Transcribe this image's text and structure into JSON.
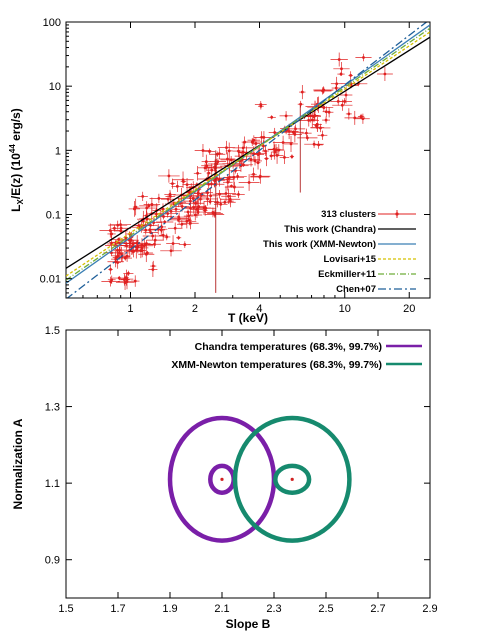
{
  "chart_data": [
    {
      "type": "scatter",
      "xlabel": "T (keV)",
      "ylabel_main": "L",
      "ylabel_sub": "X",
      "ylabel_rest": "/E(z) (10",
      "ylabel_sup": "44",
      "ylabel_end": " erg/s)",
      "xscale": "log",
      "yscale": "log",
      "xlim": [
        0.5,
        25
      ],
      "ylim": [
        0.005,
        100
      ],
      "x_ticks": [
        {
          "value": 1,
          "label": "1"
        },
        {
          "value": 2,
          "label": "2"
        },
        {
          "value": 4,
          "label": "4"
        },
        {
          "value": 10,
          "label": "10"
        },
        {
          "value": 20,
          "label": "20"
        }
      ],
      "y_ticks": [
        {
          "value": 0.01,
          "label": "0.01"
        },
        {
          "value": 0.1,
          "label": "0.1"
        },
        {
          "value": 1,
          "label": "1"
        },
        {
          "value": 10,
          "label": "10"
        },
        {
          "value": 100,
          "label": "100"
        }
      ],
      "legend_position": "bottom-right",
      "series": [
        {
          "name": "313 clusters",
          "kind": "points",
          "color": "#e02020"
        },
        {
          "name": "This work (Chandra)",
          "kind": "line",
          "color": "#000000",
          "dash": "",
          "x": [
            0.5,
            25
          ],
          "y": [
            0.0145,
            58
          ]
        },
        {
          "name": "This work (XMM-Newton)",
          "kind": "line",
          "color": "#3a7fb4",
          "dash": "",
          "x": [
            0.5,
            25
          ],
          "y": [
            0.0085,
            90
          ]
        },
        {
          "name": "Lovisari+15",
          "kind": "line",
          "color": "#d4c000",
          "dash": "3 2",
          "x": [
            0.5,
            25
          ],
          "y": [
            0.011,
            70
          ]
        },
        {
          "name": "Eckmiller+11",
          "kind": "line",
          "color": "#6fae3a",
          "dash": "6 2 1 2",
          "x": [
            0.5,
            25
          ],
          "y": [
            0.0095,
            80
          ]
        },
        {
          "name": "Chen+07",
          "kind": "line",
          "color": "#1f5f99",
          "dash": "8 3 2 3",
          "x": [
            0.5,
            25
          ],
          "y": [
            0.0048,
            110
          ]
        }
      ]
    },
    {
      "type": "line",
      "xlabel": "Slope B",
      "ylabel": "Normalization A",
      "xlim": [
        1.5,
        2.9
      ],
      "ylim": [
        0.8,
        1.5
      ],
      "x_ticks": [
        "1.5",
        "1.7",
        "1.9",
        "2.1",
        "2.3",
        "2.5",
        "2.7",
        "2.9"
      ],
      "y_ticks": [
        {
          "value": 0.9,
          "label": "0.9"
        },
        {
          "value": 1.1,
          "label": "1.1"
        },
        {
          "value": 1.3,
          "label": "1.3"
        },
        {
          "value": 1.5,
          "label": "1.5"
        }
      ],
      "legend_position": "top-right",
      "series": [
        {
          "name": "Chandra temperatures (68.3%, 99.7%)",
          "color": "#7a1fa8",
          "center": [
            2.1,
            1.11
          ],
          "contours": [
            {
              "level": "68.3%",
              "rx": 0.045,
              "ry": 0.035
            },
            {
              "level": "99.7%",
              "rx": 0.2,
              "ry": 0.16
            }
          ]
        },
        {
          "name": "XMM-Newton temperatures (68.3%, 99.7%)",
          "color": "#168a6e",
          "center": [
            2.37,
            1.11
          ],
          "contours": [
            {
              "level": "68.3%",
              "rx": 0.065,
              "ry": 0.035
            },
            {
              "level": "99.7%",
              "rx": 0.22,
              "ry": 0.16
            }
          ]
        }
      ]
    }
  ]
}
